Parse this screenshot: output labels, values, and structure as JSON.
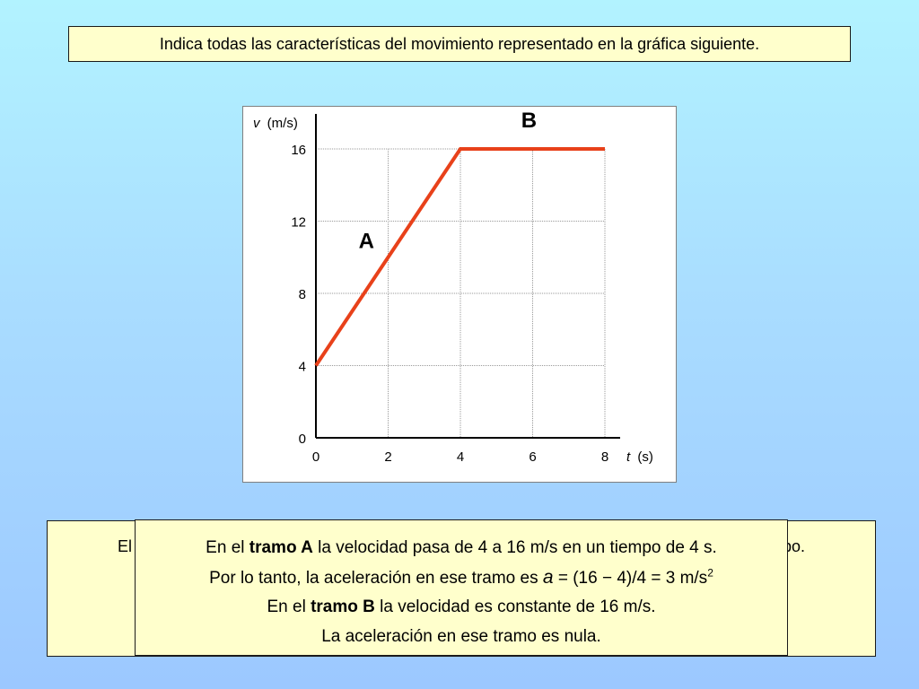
{
  "question": "Indica todas las características del movimiento representado en la gráfica siguiente.",
  "back_box": {
    "left_fragment": "El",
    "right_fragment": "po."
  },
  "explanation": {
    "line1": {
      "pre": "En el ",
      "bold": "tramo A",
      "post": " la velocidad pasa de 4 a 16 m/s en un tiempo de 4 s."
    },
    "line2": {
      "pre": "Por lo tanto, la aceleración en ese tramo es ",
      "italic": "a",
      "post": " = (16 − 4)/4 = 3 m/s",
      "sup": "2"
    },
    "line3": {
      "pre": "En el ",
      "bold": "tramo B",
      "post": " la velocidad es constante de 16 m/s."
    },
    "line4": {
      "text": "La aceleración en ese tramo es nula."
    }
  },
  "chart_data": {
    "type": "line",
    "ylabel": {
      "symbol": "v",
      "unit": "(m/s)"
    },
    "xlabel": {
      "symbol": "t",
      "unit": "(s)"
    },
    "xlim": [
      0,
      8
    ],
    "ylim": [
      0,
      16
    ],
    "xticks": [
      0,
      2,
      4,
      6,
      8
    ],
    "yticks": [
      0,
      4,
      8,
      12,
      16
    ],
    "grid": true,
    "series": [
      {
        "color": "#e8411a",
        "points": [
          {
            "x": 0,
            "y": 4
          },
          {
            "x": 4,
            "y": 16
          },
          {
            "x": 8,
            "y": 16
          }
        ]
      }
    ],
    "annotations": [
      {
        "text": "A",
        "x": 1.4,
        "y": 10.5
      },
      {
        "text": "B",
        "x": 5.9,
        "y": 17.2
      }
    ]
  }
}
